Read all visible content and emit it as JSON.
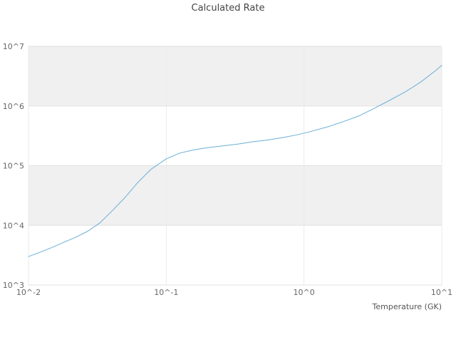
{
  "figure": {
    "title": "Calculated Rate",
    "xlabel": "Temperature (GK)"
  },
  "chart_data": {
    "type": "line",
    "title": "Calculated Rate",
    "xlabel": "Temperature (GK)",
    "ylabel": "",
    "x_scale": "log",
    "y_scale": "log",
    "xlim": [
      0.01,
      10
    ],
    "ylim": [
      1000,
      10000000
    ],
    "x_tick_values": [
      0.01,
      0.1,
      1,
      10
    ],
    "x_tick_labels": [
      "10^-2",
      "10^-1",
      "10^0",
      "10^1"
    ],
    "y_tick_values": [
      1000,
      10000,
      100000,
      1000000,
      10000000
    ],
    "y_tick_labels": [
      "10^3",
      "10^4",
      "10^5",
      "10^6",
      "10^7"
    ],
    "grid": true,
    "legend": "none",
    "band_color": "#f0f0f0",
    "grid_color": "#e2e2e2",
    "vgrid_color": "#ebebeb",
    "text_color": "#666666",
    "series": [
      {
        "name": "calculated-rate",
        "color": "#6baed6",
        "x": [
          0.01,
          0.012,
          0.015,
          0.018,
          0.022,
          0.027,
          0.033,
          0.04,
          0.05,
          0.062,
          0.078,
          0.1,
          0.125,
          0.16,
          0.2,
          0.26,
          0.33,
          0.42,
          0.55,
          0.7,
          0.9,
          1.15,
          1.5,
          1.9,
          2.5,
          3.2,
          4.2,
          5.5,
          7.0,
          9.0,
          10.0
        ],
        "y": [
          3000,
          3500,
          4300,
          5200,
          6300,
          8000,
          11000,
          17000,
          29000,
          52000,
          88000,
          130000,
          162000,
          185000,
          200000,
          215000,
          230000,
          250000,
          270000,
          295000,
          330000,
          380000,
          450000,
          540000,
          680000,
          900000,
          1250000,
          1750000,
          2500000,
          3900000,
          4800000
        ]
      }
    ]
  }
}
